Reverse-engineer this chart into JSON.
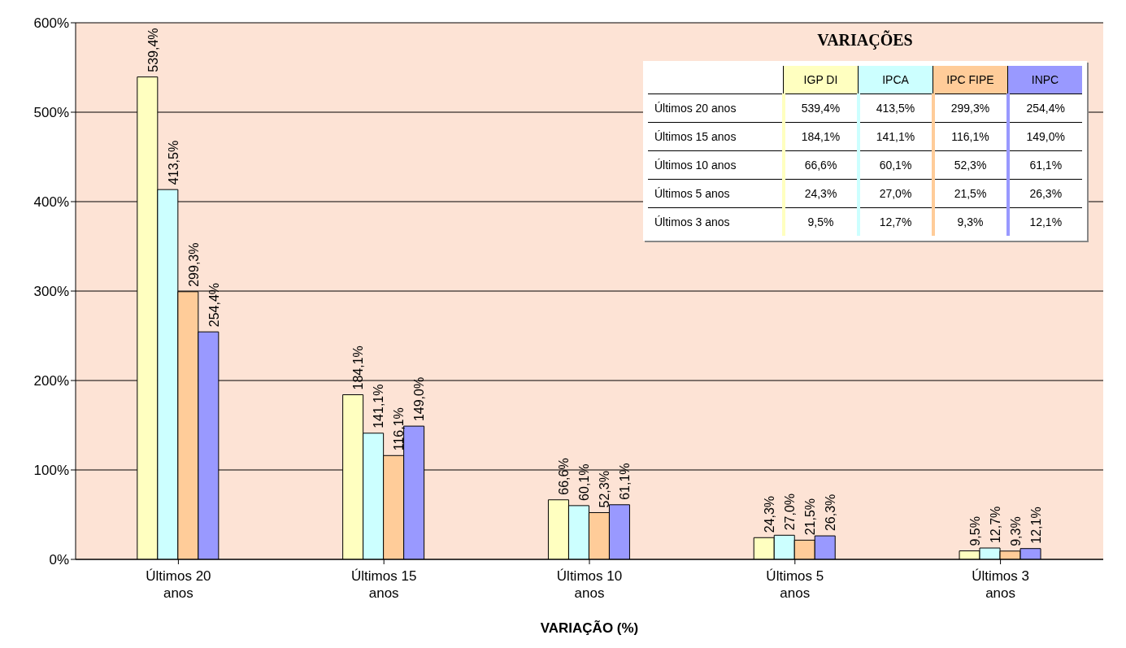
{
  "chart_data": {
    "type": "bar",
    "xlabel": "VARIAÇÃO (%)",
    "legend_title": "VARIAÇÕES",
    "categories": [
      "Últimos 20 anos",
      "Últimos 15 anos",
      "Últimos 10 anos",
      "Últimos 5 anos",
      "Últimos 3 anos"
    ],
    "series": [
      {
        "name": "IGP DI",
        "color": "#ffffc0",
        "values": [
          539.4,
          184.1,
          66.6,
          24.3,
          9.5
        ],
        "value_labels": [
          "539,4%",
          "184,1%",
          "66,6%",
          "24,3%",
          "9,5%"
        ]
      },
      {
        "name": "IPCA",
        "color": "#ccffff",
        "values": [
          413.5,
          141.1,
          60.1,
          27.0,
          12.7
        ],
        "value_labels": [
          "413,5%",
          "141,1%",
          "60,1%",
          "27,0%",
          "12,7%"
        ]
      },
      {
        "name": "IPC FIPE",
        "color": "#ffcc99",
        "values": [
          299.3,
          116.1,
          52.3,
          21.5,
          9.3
        ],
        "value_labels": [
          "299,3%",
          "116,1%",
          "52,3%",
          "21,5%",
          "9,3%"
        ]
      },
      {
        "name": "INPC",
        "color": "#9999ff",
        "values": [
          254.4,
          149.0,
          61.1,
          26.3,
          12.1
        ],
        "value_labels": [
          "254,4%",
          "149,0%",
          "61,1%",
          "26,3%",
          "12,1%"
        ]
      }
    ],
    "ylim": [
      0,
      600
    ],
    "yticks": [
      {
        "value": 0,
        "label": "0%"
      },
      {
        "value": 100,
        "label": "100%"
      },
      {
        "value": 200,
        "label": "200%"
      },
      {
        "value": 300,
        "label": "300%"
      },
      {
        "value": 400,
        "label": "400%"
      },
      {
        "value": 500,
        "label": "500%"
      },
      {
        "value": 600,
        "label": "600%"
      }
    ],
    "grid": "y",
    "legend": "top right"
  }
}
